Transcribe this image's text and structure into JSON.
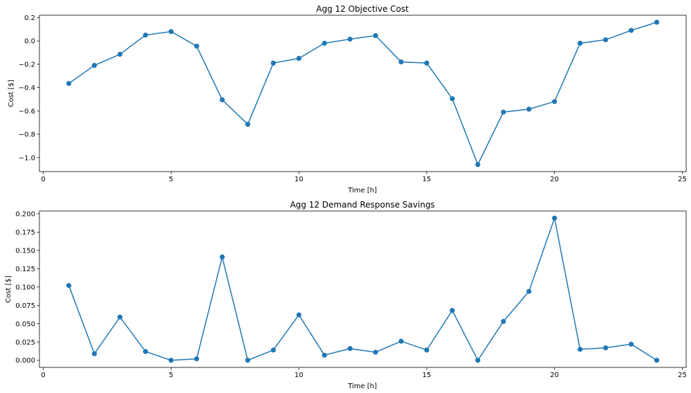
{
  "chart_data": [
    {
      "type": "line",
      "title": "Agg 12 Objective Cost",
      "xlabel": "Time [h]",
      "ylabel": "Cost [$]",
      "xlim": [
        -0.15,
        25.15
      ],
      "ylim": [
        -1.12,
        0.22
      ],
      "xticks": [
        0,
        5,
        10,
        15,
        20,
        25
      ],
      "xtick_labels": [
        "0",
        "5",
        "10",
        "15",
        "20",
        "25"
      ],
      "yticks": [
        -1.0,
        -0.8,
        -0.6,
        -0.4,
        -0.2,
        0.0,
        0.2
      ],
      "ytick_labels": [
        "−1.0",
        "−0.8",
        "−0.6",
        "−0.4",
        "−0.2",
        "0.0",
        "0.2"
      ],
      "grid": false,
      "color": "#1f77b4",
      "x": [
        1,
        2,
        3,
        4,
        5,
        6,
        7,
        8,
        9,
        10,
        11,
        12,
        13,
        14,
        15,
        16,
        17,
        18,
        19,
        20,
        21,
        22,
        23,
        24
      ],
      "y": [
        -0.365,
        -0.21,
        -0.115,
        0.05,
        0.08,
        -0.045,
        -0.505,
        -0.715,
        -0.19,
        -0.15,
        -0.02,
        0.015,
        0.045,
        -0.18,
        -0.19,
        -0.495,
        -1.06,
        -0.61,
        -0.585,
        -0.52,
        -0.02,
        0.01,
        0.09,
        0.16
      ]
    },
    {
      "type": "line",
      "title": "Agg 12 Demand Response Savings",
      "xlabel": "Time [h]",
      "ylabel": "Cost [$]",
      "xlim": [
        -0.15,
        25.15
      ],
      "ylim": [
        -0.0097,
        0.2037
      ],
      "xticks": [
        0,
        5,
        10,
        15,
        20,
        25
      ],
      "xtick_labels": [
        "0",
        "5",
        "10",
        "15",
        "20",
        "25"
      ],
      "yticks": [
        0.0,
        0.025,
        0.05,
        0.075,
        0.1,
        0.125,
        0.15,
        0.175,
        0.2
      ],
      "ytick_labels": [
        "0.000",
        "0.025",
        "0.050",
        "0.075",
        "0.100",
        "0.125",
        "0.150",
        "0.175",
        "0.200"
      ],
      "grid": false,
      "color": "#1f77b4",
      "x": [
        1,
        2,
        3,
        4,
        5,
        6,
        7,
        8,
        9,
        10,
        11,
        12,
        13,
        14,
        15,
        16,
        17,
        18,
        19,
        20,
        21,
        22,
        23,
        24
      ],
      "y": [
        0.102,
        0.009,
        0.059,
        0.012,
        0.0,
        0.002,
        0.141,
        0.0,
        0.014,
        0.062,
        0.007,
        0.016,
        0.011,
        0.026,
        0.014,
        0.068,
        0.0,
        0.053,
        0.094,
        0.194,
        0.015,
        0.017,
        0.022,
        0.0
      ]
    }
  ]
}
